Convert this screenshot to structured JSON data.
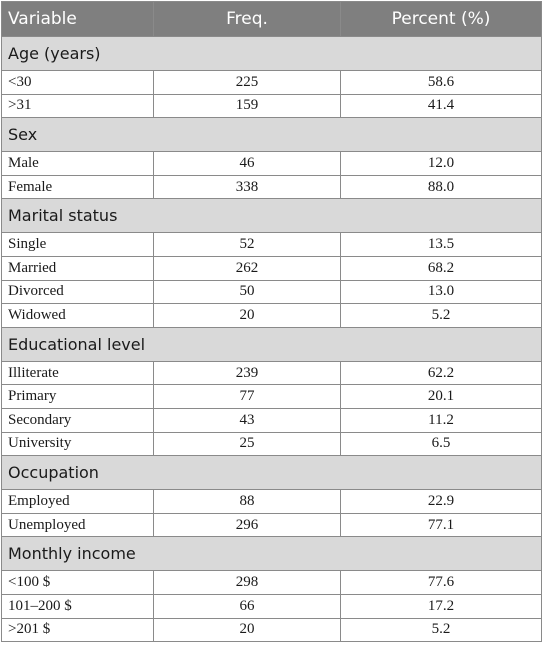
{
  "header": {
    "variable": "Variable",
    "freq": "Freq.",
    "percent": "Percent (%)"
  },
  "sections": [
    {
      "title": "Age (years)",
      "rows": [
        {
          "label": "<30",
          "freq": "225",
          "percent": "58.6"
        },
        {
          "label": ">31",
          "freq": "159",
          "percent": "41.4"
        }
      ]
    },
    {
      "title": "Sex",
      "rows": [
        {
          "label": "Male",
          "freq": "46",
          "percent": "12.0"
        },
        {
          "label": "Female",
          "freq": "338",
          "percent": "88.0"
        }
      ]
    },
    {
      "title": "Marital status",
      "rows": [
        {
          "label": "Single",
          "freq": "52",
          "percent": "13.5"
        },
        {
          "label": "Married",
          "freq": "262",
          "percent": "68.2"
        },
        {
          "label": "Divorced",
          "freq": "50",
          "percent": "13.0"
        },
        {
          "label": "Widowed",
          "freq": "20",
          "percent": "5.2"
        }
      ]
    },
    {
      "title": "Educational level",
      "rows": [
        {
          "label": "Illiterate",
          "freq": "239",
          "percent": "62.2"
        },
        {
          "label": "Primary",
          "freq": "77",
          "percent": "20.1"
        },
        {
          "label": "Secondary",
          "freq": "43",
          "percent": "11.2"
        },
        {
          "label": "University",
          "freq": "25",
          "percent": "6.5"
        }
      ]
    },
    {
      "title": "Occupation",
      "rows": [
        {
          "label": "Employed",
          "freq": "88",
          "percent": "22.9"
        },
        {
          "label": "Unemployed",
          "freq": "296",
          "percent": "77.1"
        }
      ]
    },
    {
      "title": "Monthly income",
      "rows": [
        {
          "label": "<100 $",
          "freq": "298",
          "percent": "77.6"
        },
        {
          "label": "101–200 $",
          "freq": "66",
          "percent": "17.2"
        },
        {
          "label": ">201 $",
          "freq": "20",
          "percent": "5.2"
        }
      ]
    }
  ]
}
